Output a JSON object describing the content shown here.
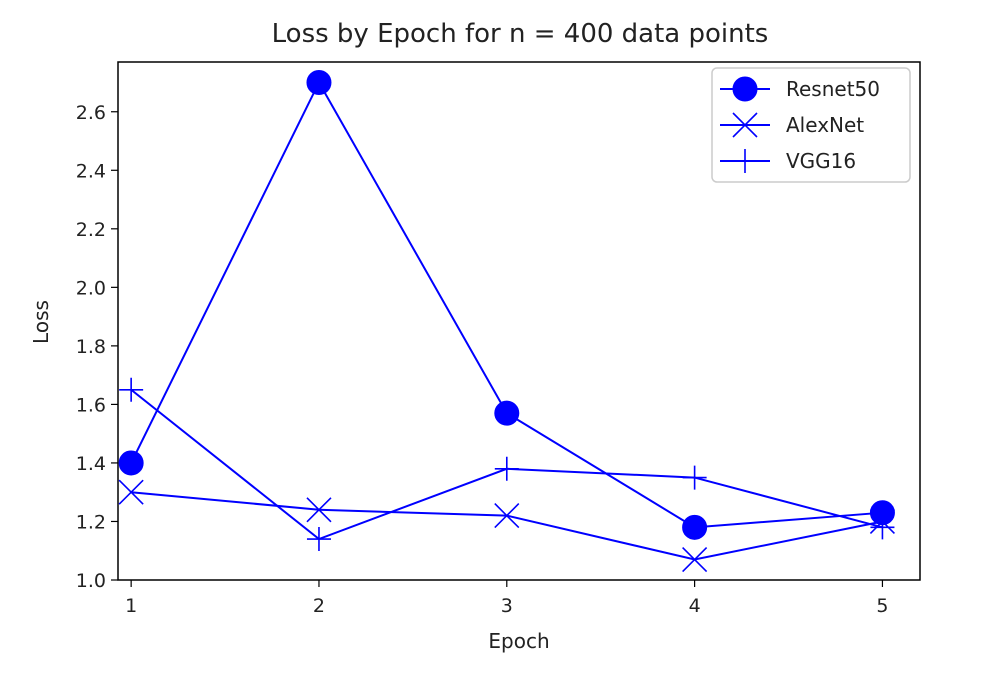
{
  "chart_data": {
    "type": "line",
    "title": "Loss by Epoch for n = 400 data points",
    "xlabel": "Epoch",
    "ylabel": "Loss",
    "x": [
      1,
      2,
      3,
      4,
      5
    ],
    "xticks": [
      "1",
      "2",
      "3",
      "4",
      "5"
    ],
    "yticks": [
      "1.0",
      "1.2",
      "1.4",
      "1.6",
      "1.8",
      "2.0",
      "2.2",
      "2.4",
      "2.6"
    ],
    "xlim": [
      0.93,
      5.2
    ],
    "ylim": [
      1.0,
      2.77
    ],
    "grid": false,
    "legend_position": "top-right",
    "color": "#0000ff",
    "series": [
      {
        "name": "Resnet50",
        "marker": "circle",
        "values": [
          1.4,
          2.7,
          1.57,
          1.18,
          1.23
        ]
      },
      {
        "name": "AlexNet",
        "marker": "x",
        "values": [
          1.3,
          1.24,
          1.22,
          1.07,
          1.2
        ]
      },
      {
        "name": "VGG16",
        "marker": "plus",
        "values": [
          1.65,
          1.14,
          1.38,
          1.35,
          1.18
        ]
      }
    ]
  }
}
